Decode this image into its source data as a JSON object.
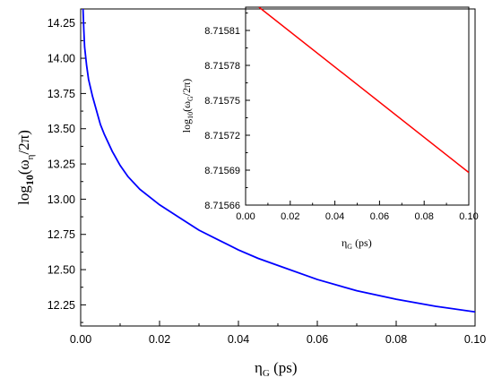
{
  "chart_data": [
    {
      "type": "line",
      "role": "main",
      "xlabel": "η_G (ps)",
      "ylabel": "log10(ω_η/2π)",
      "xlim": [
        0.0,
        0.1
      ],
      "ylim": [
        12.1,
        14.35
      ],
      "x_ticks": [
        "0.00",
        "0.02",
        "0.04",
        "0.06",
        "0.08",
        "0.10"
      ],
      "y_ticks": [
        "12.25",
        "12.50",
        "12.75",
        "13.00",
        "13.25",
        "13.50",
        "13.75",
        "14.00",
        "14.25"
      ],
      "series": [
        {
          "color": "#0000ff",
          "points": [
            [
              0.0006,
              14.35
            ],
            [
              0.0008,
              14.2
            ],
            [
              0.001,
              14.08
            ],
            [
              0.0015,
              13.95
            ],
            [
              0.002,
              13.85
            ],
            [
              0.003,
              13.73
            ],
            [
              0.004,
              13.63
            ],
            [
              0.005,
              13.53
            ],
            [
              0.006,
              13.46
            ],
            [
              0.008,
              13.34
            ],
            [
              0.01,
              13.24
            ],
            [
              0.012,
              13.16
            ],
            [
              0.015,
              13.07
            ],
            [
              0.02,
              12.96
            ],
            [
              0.025,
              12.87
            ],
            [
              0.03,
              12.78
            ],
            [
              0.035,
              12.71
            ],
            [
              0.04,
              12.64
            ],
            [
              0.045,
              12.58
            ],
            [
              0.05,
              12.53
            ],
            [
              0.06,
              12.43
            ],
            [
              0.07,
              12.35
            ],
            [
              0.08,
              12.29
            ],
            [
              0.09,
              12.24
            ],
            [
              0.1,
              12.2
            ]
          ]
        }
      ]
    },
    {
      "type": "line",
      "role": "inset",
      "xlabel": "η_G (ps)",
      "ylabel": "log10(ω_G/2π)",
      "xlim": [
        0.0,
        0.1
      ],
      "ylim": [
        8.71566,
        8.71583
      ],
      "x_ticks": [
        "0.00",
        "0.02",
        "0.04",
        "0.06",
        "0.08",
        "0.10"
      ],
      "y_ticks": [
        "8.71566",
        "8.71569",
        "8.71572",
        "8.71575",
        "8.71578",
        "8.71581"
      ],
      "series": [
        {
          "color": "#ff0000",
          "points": [
            [
              0.006,
              8.71583
            ],
            [
              0.1,
              8.715688
            ]
          ]
        }
      ]
    }
  ]
}
